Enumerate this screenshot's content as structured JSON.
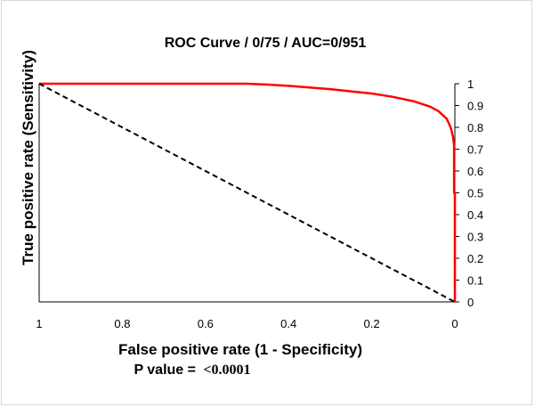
{
  "chart_data": {
    "type": "line",
    "title": "ROC Curve / 0/75 / AUC=0/951",
    "xlabel": "False positive rate (1 - Specificity)",
    "ylabel": "True positive rate (Sensitivity)",
    "xlim": [
      1,
      0
    ],
    "ylim": [
      0,
      1
    ],
    "x_reversed": true,
    "y_axis_side": "right",
    "grid": false,
    "legend": "none",
    "x_ticks": [
      "1",
      "0.8",
      "0.6",
      "0.4",
      "0.2",
      "0"
    ],
    "y_ticks": [
      "0",
      "0.1",
      "0.2",
      "0.3",
      "0.4",
      "0.5",
      "0.6",
      "0.7",
      "0.8",
      "0.9",
      "1"
    ],
    "series": [
      {
        "color": "#ff0000",
        "style": "solid",
        "x": [
          0,
          0,
          0.002,
          0.002,
          0.005,
          0.01,
          0.02,
          0.04,
          0.06,
          0.1,
          0.15,
          0.2,
          0.25,
          0.3,
          0.35,
          0.4,
          0.45,
          0.5,
          0.6,
          0.8,
          1
        ],
        "y": [
          0,
          0.5,
          0.5,
          0.72,
          0.76,
          0.8,
          0.84,
          0.875,
          0.895,
          0.92,
          0.94,
          0.955,
          0.965,
          0.975,
          0.983,
          0.99,
          0.996,
          1,
          1,
          1,
          1
        ]
      },
      {
        "color": "#000000",
        "style": "dashed",
        "x": [
          1,
          0
        ],
        "y": [
          1,
          0
        ]
      }
    ]
  },
  "p_value": {
    "label": "P value = ",
    "value": "<0.0001"
  }
}
